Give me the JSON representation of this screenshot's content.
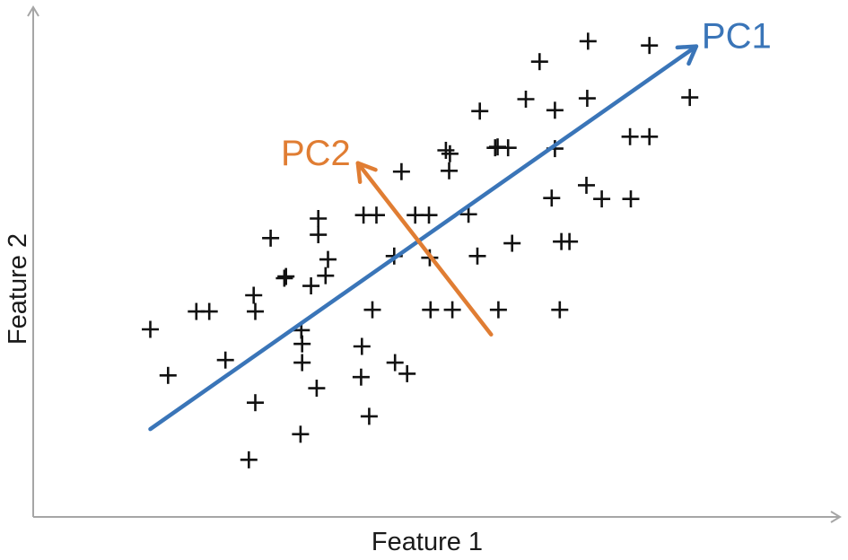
{
  "chart_data": {
    "type": "scatter",
    "xlabel": "Feature 1",
    "ylabel": "Feature 2",
    "grid": false,
    "marker": "plus",
    "xlim": [
      0,
      100
    ],
    "ylim": [
      0,
      60
    ],
    "points": [
      [
        14.5,
        22.0
      ],
      [
        16.7,
        16.6
      ],
      [
        20.2,
        24.1
      ],
      [
        21.8,
        24.1
      ],
      [
        23.8,
        18.4
      ],
      [
        26.7,
        6.7
      ],
      [
        27.3,
        26.0
      ],
      [
        27.5,
        24.1
      ],
      [
        27.5,
        13.4
      ],
      [
        29.4,
        32.7
      ],
      [
        31.1,
        28.0
      ],
      [
        31.3,
        28.2
      ],
      [
        33.1,
        9.7
      ],
      [
        33.2,
        21.9
      ],
      [
        33.3,
        18.1
      ],
      [
        33.3,
        20.3
      ],
      [
        34.4,
        27.1
      ],
      [
        35.1,
        15.1
      ],
      [
        35.3,
        33.1
      ],
      [
        35.3,
        35.0
      ],
      [
        36.2,
        28.3
      ],
      [
        36.5,
        30.2
      ],
      [
        40.6,
        16.4
      ],
      [
        40.7,
        20.0
      ],
      [
        40.9,
        35.4
      ],
      [
        41.6,
        11.8
      ],
      [
        42.0,
        24.3
      ],
      [
        42.5,
        35.4
      ],
      [
        44.7,
        30.6
      ],
      [
        44.8,
        18.1
      ],
      [
        45.6,
        40.5
      ],
      [
        46.3,
        16.8
      ],
      [
        47.3,
        35.4
      ],
      [
        49.0,
        35.4
      ],
      [
        49.1,
        30.4
      ],
      [
        49.2,
        24.3
      ],
      [
        51.1,
        43.0
      ],
      [
        51.5,
        40.6
      ],
      [
        51.6,
        42.6
      ],
      [
        51.9,
        24.3
      ],
      [
        53.9,
        35.5
      ],
      [
        55.0,
        30.6
      ],
      [
        55.3,
        47.6
      ],
      [
        57.2,
        43.3
      ],
      [
        57.5,
        43.4
      ],
      [
        57.6,
        24.3
      ],
      [
        58.8,
        43.3
      ],
      [
        59.3,
        32.1
      ],
      [
        61.0,
        49.0
      ],
      [
        62.7,
        53.4
      ],
      [
        64.2,
        37.4
      ],
      [
        64.6,
        47.7
      ],
      [
        64.6,
        43.2
      ],
      [
        65.2,
        24.3
      ],
      [
        65.4,
        32.3
      ],
      [
        66.4,
        32.3
      ],
      [
        68.5,
        38.9
      ],
      [
        68.6,
        49.1
      ],
      [
        68.7,
        55.8
      ],
      [
        70.4,
        37.3
      ],
      [
        73.9,
        44.6
      ],
      [
        74.0,
        37.3
      ],
      [
        76.3,
        44.6
      ],
      [
        76.3,
        55.3
      ],
      [
        81.3,
        49.2
      ]
    ],
    "vectors": [
      {
        "name": "PC1",
        "color": "#3a75b8",
        "from": [
          14.5,
          10.3
        ],
        "to": [
          82.1,
          55.2
        ]
      },
      {
        "name": "PC2",
        "color": "#e07d33",
        "from": [
          56.7,
          21.4
        ],
        "to": [
          40.2,
          41.5
        ]
      }
    ]
  }
}
